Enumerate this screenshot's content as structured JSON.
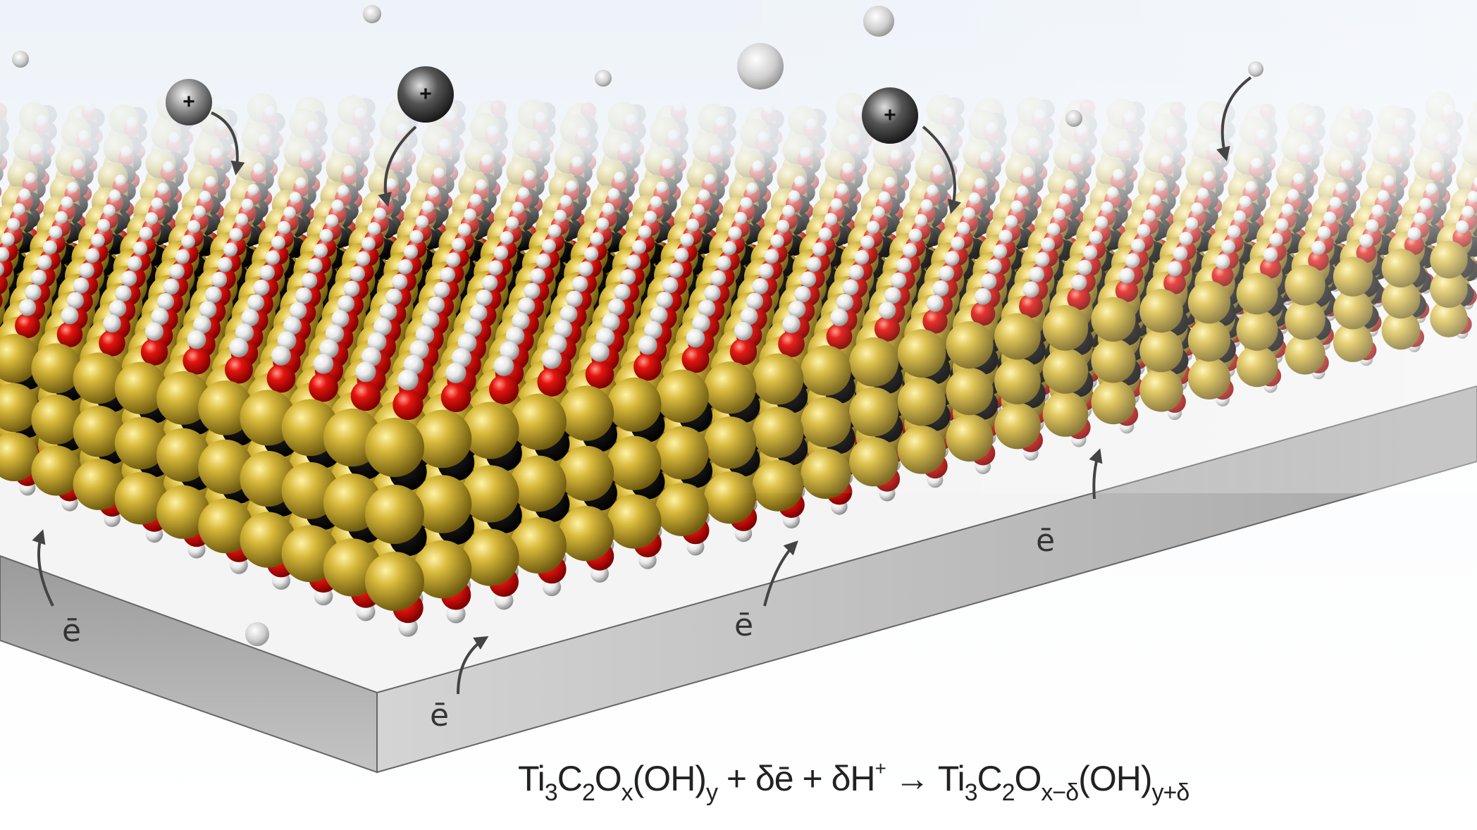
{
  "figure": {
    "ions": [
      {
        "label": "+"
      },
      {
        "label": "+"
      },
      {
        "label": "+"
      }
    ],
    "electron_labels": [
      "ē",
      "ē",
      "ē",
      "ē"
    ],
    "equation": {
      "lhs_ti": "Ti",
      "lhs_ti_sub": "3",
      "lhs_c": "C",
      "lhs_c_sub": "2",
      "lhs_o": "O",
      "lhs_o_sub": "x",
      "lhs_oh": "(OH)",
      "lhs_oh_sub": "y",
      "plus1": " + δē + δH",
      "h_sup": "+",
      "arrow": " → ",
      "rhs_ti": "Ti",
      "rhs_ti_sub": "3",
      "rhs_c": "C",
      "rhs_c_sub": "2",
      "rhs_o": "O",
      "rhs_o_sub": "x−δ",
      "rhs_oh": "(OH)",
      "rhs_oh_sub": "y+δ"
    },
    "colors": {
      "titanium": "#c9a82c",
      "carbon": "#111111",
      "oxygen": "#e0100e",
      "hydrogen": "#f2f2f2",
      "substrate": "#b8b8b8"
    }
  }
}
